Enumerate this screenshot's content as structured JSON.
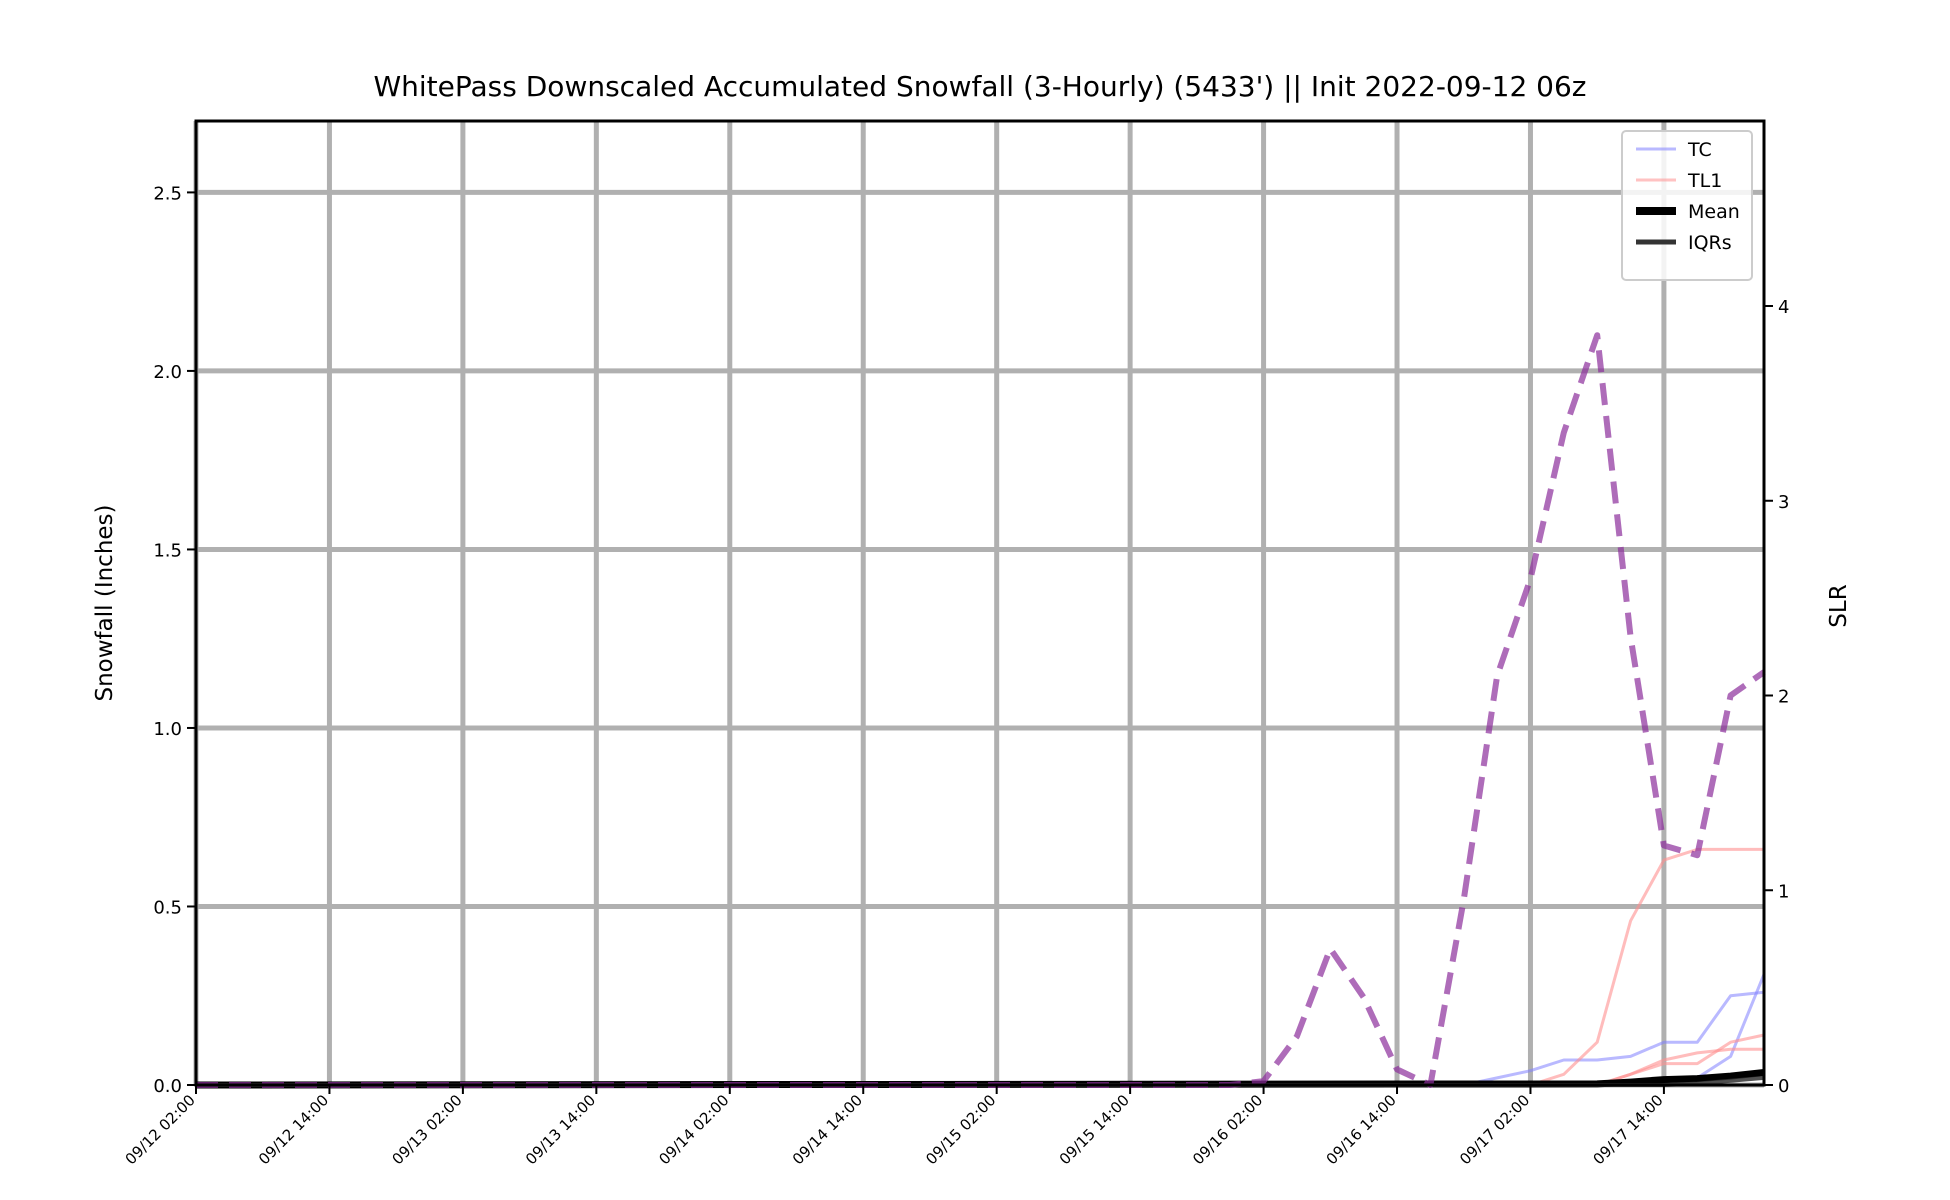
{
  "chart_data": {
    "type": "line",
    "title": "WhitePass Downscaled Accumulated Snowfall (3-Hourly) (5433') || Init 2022-09-12 06z",
    "ylabel": "Snowfall (Inches)",
    "y2label": "SLR",
    "ylim": [
      0,
      2.7
    ],
    "y2lim": [
      0,
      4.95
    ],
    "yticks": [
      0.0,
      0.5,
      1.0,
      1.5,
      2.0,
      2.5
    ],
    "yticklabels": [
      "0.0",
      "0.5",
      "1.0",
      "1.5",
      "2.0",
      "2.5"
    ],
    "y2ticks": [
      0,
      1,
      2,
      3,
      4
    ],
    "y2ticklabels": [
      "0",
      "1",
      "2",
      "3",
      "4"
    ],
    "x_start": "09/12 02:00",
    "x_end": "09/17 23:00",
    "xticklabels": [
      "09/12 02:00",
      "09/12 14:00",
      "09/13 02:00",
      "09/13 14:00",
      "09/14 02:00",
      "09/14 14:00",
      "09/15 02:00",
      "09/15 14:00",
      "09/16 02:00",
      "09/16 14:00",
      "09/17 02:00",
      "09/17 14:00"
    ],
    "grid": true,
    "legend_position": "top-right",
    "legend": [
      {
        "label": "TC",
        "color": "#8080ff",
        "style": "thin"
      },
      {
        "label": "TL1",
        "color": "#ff9090",
        "style": "thin"
      },
      {
        "label": "Mean",
        "color": "#000000",
        "style": "thick"
      },
      {
        "label": "IQRs",
        "color": "#333333",
        "style": "medium"
      }
    ],
    "series": [
      {
        "name": "TC",
        "axis": "left",
        "color": "#8080ff",
        "opacity": 0.55,
        "width": 3,
        "x": [
          "09/12 02:00",
          "09/16 14:00",
          "09/16 20:00",
          "09/16 23:00",
          "09/17 02:00",
          "09/17 05:00",
          "09/17 08:00",
          "09/17 11:00",
          "09/17 14:00",
          "09/17 17:00",
          "09/17 20:00",
          "09/17 23:00"
        ],
        "values": [
          0.0,
          0.0,
          0.0,
          0.02,
          0.04,
          0.07,
          0.07,
          0.08,
          0.12,
          0.12,
          0.25,
          0.26
        ]
      },
      {
        "axis": "left",
        "color": "#8080ff",
        "opacity": 0.55,
        "width": 3,
        "x": [
          "09/12 02:00",
          "09/17 08:00",
          "09/17 11:00",
          "09/17 14:00",
          "09/17 17:00",
          "09/17 20:00",
          "09/17 23:00"
        ],
        "values": [
          0.0,
          0.0,
          0.01,
          0.02,
          0.02,
          0.08,
          0.31
        ]
      },
      {
        "name": "TL1",
        "axis": "left",
        "color": "#ff9090",
        "opacity": 0.6,
        "width": 3,
        "x": [
          "09/12 02:00",
          "09/17 02:00",
          "09/17 05:00",
          "09/17 08:00",
          "09/17 11:00",
          "09/17 14:00",
          "09/17 17:00",
          "09/17 20:00",
          "09/17 23:00"
        ],
        "values": [
          0.0,
          0.0,
          0.03,
          0.12,
          0.46,
          0.63,
          0.66,
          0.66,
          0.66
        ]
      },
      {
        "axis": "left",
        "color": "#ff9090",
        "opacity": 0.6,
        "width": 3,
        "x": [
          "09/12 02:00",
          "09/17 08:00",
          "09/17 11:00",
          "09/17 14:00",
          "09/17 17:00",
          "09/17 20:00",
          "09/17 23:00"
        ],
        "values": [
          0.0,
          0.0,
          0.03,
          0.07,
          0.09,
          0.1,
          0.1
        ]
      },
      {
        "axis": "left",
        "color": "#ff9090",
        "opacity": 0.6,
        "width": 3,
        "x": [
          "09/12 02:00",
          "09/17 08:00",
          "09/17 11:00",
          "09/17 14:00",
          "09/17 17:00",
          "09/17 20:00",
          "09/17 23:00"
        ],
        "values": [
          0.0,
          0.0,
          0.03,
          0.06,
          0.06,
          0.12,
          0.14
        ]
      },
      {
        "name": "Mean",
        "axis": "left",
        "color": "#000000",
        "opacity": 1,
        "width": 7,
        "x": [
          "09/12 02:00",
          "09/17 08:00",
          "09/17 11:00",
          "09/17 14:00",
          "09/17 17:00",
          "09/17 20:00",
          "09/17 23:00"
        ],
        "values": [
          0.0,
          0.003,
          0.008,
          0.015,
          0.018,
          0.025,
          0.035
        ]
      },
      {
        "axis": "left",
        "color": "#333333",
        "opacity": 0.85,
        "width": 4,
        "x": [
          "09/12 02:00",
          "09/17 14:00",
          "09/17 17:00",
          "09/17 20:00",
          "09/17 23:00"
        ],
        "values": [
          0.0,
          0.0,
          0.004,
          0.012,
          0.02
        ]
      },
      {
        "axis": "right",
        "color": "#8b2d9b",
        "opacity": 0.7,
        "width": 6,
        "dash": [
          22,
          11
        ],
        "x": [
          "09/12 02:00",
          "09/15 20:00",
          "09/15 23:00",
          "09/16 02:00",
          "09/16 05:00",
          "09/16 08:00",
          "09/16 11:00",
          "09/16 14:00",
          "09/16 17:00",
          "09/16 20:00",
          "09/16 23:00",
          "09/17 02:00",
          "09/17 05:00",
          "09/17 08:00",
          "09/17 11:00",
          "09/17 14:00",
          "09/17 17:00",
          "09/17 20:00",
          "09/17 23:00"
        ],
        "values": [
          0.0,
          0.0,
          0.0,
          0.02,
          0.25,
          0.7,
          0.45,
          0.08,
          0.0,
          0.95,
          2.1,
          2.6,
          3.35,
          3.85,
          2.3,
          1.23,
          1.18,
          2.0,
          2.12
        ]
      }
    ]
  }
}
